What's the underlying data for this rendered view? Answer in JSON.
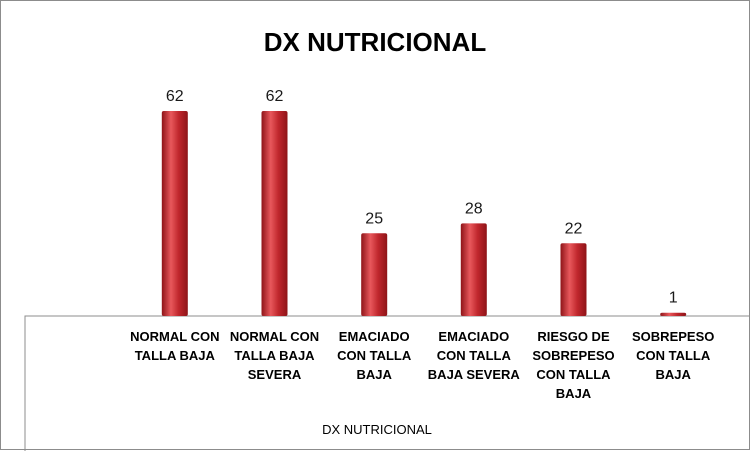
{
  "chart_data": {
    "type": "bar",
    "title": "DX NUTRICIONAL",
    "xlabel": "DX NUTRICIONAL",
    "ylabel": "",
    "categories": [
      [
        "NORMAL CON",
        "TALLA BAJA"
      ],
      [
        "NORMAL CON",
        "TALLA BAJA",
        "SEVERA"
      ],
      [
        "EMACIADO",
        "CON TALLA",
        "BAJA"
      ],
      [
        "EMACIADO",
        "CON TALLA",
        "BAJA SEVERA"
      ],
      [
        "RIESGO DE",
        "SOBREPESO",
        "CON TALLA",
        "BAJA"
      ],
      [
        "SOBREPESO",
        "CON TALLA",
        "BAJA"
      ]
    ],
    "values": [
      62,
      62,
      25,
      28,
      22,
      1
    ],
    "ylim": [
      0,
      75
    ],
    "grid": false,
    "legend": "none",
    "colors": {
      "bar": "#c0272d",
      "bar_light": "#e8585c",
      "bar_dark": "#8e1418",
      "frame": "#8c8c8c"
    }
  }
}
